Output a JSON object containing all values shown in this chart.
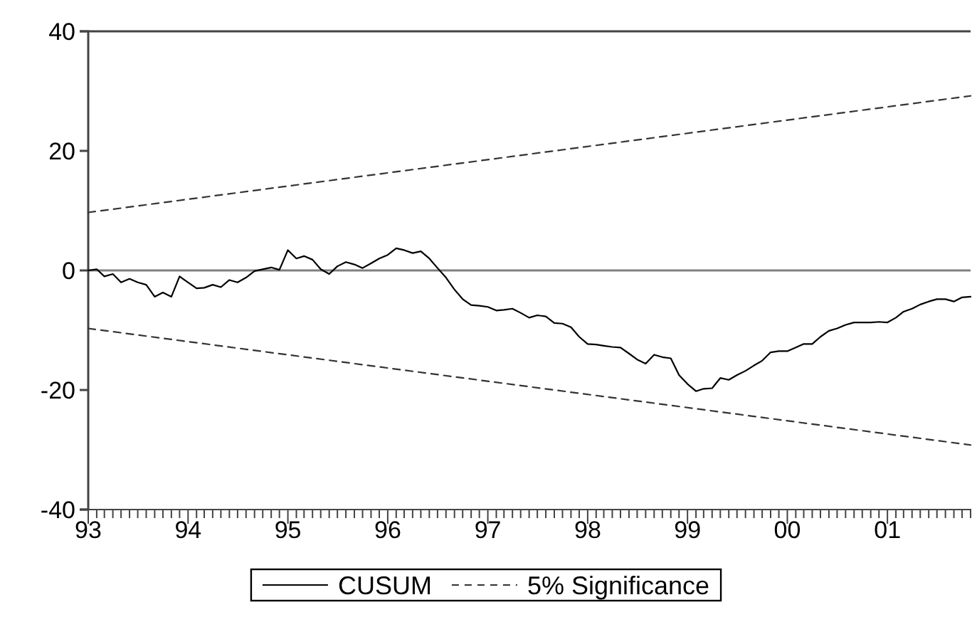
{
  "chart_data": {
    "type": "line",
    "ylim": [
      -40,
      40
    ],
    "yticks": [
      -40,
      -20,
      0,
      20,
      40
    ],
    "xlim": [
      "1993-01",
      "2001-11"
    ],
    "xticks": [
      {
        "value": "1993-01",
        "label": "93"
      },
      {
        "value": "1993-02",
        "label": null
      },
      {
        "value": "1993-03",
        "label": null
      },
      {
        "value": "1993-04",
        "label": null
      },
      {
        "value": "1993-05",
        "label": null
      },
      {
        "value": "1993-06",
        "label": null
      },
      {
        "value": "1993-07",
        "label": null
      },
      {
        "value": "1993-08",
        "label": null
      },
      {
        "value": "1993-09",
        "label": null
      },
      {
        "value": "1993-10",
        "label": null
      },
      {
        "value": "1993-11",
        "label": null
      },
      {
        "value": "1993-12",
        "label": null
      },
      {
        "value": "1994-01",
        "label": "94"
      },
      {
        "value": "1994-02",
        "label": null
      },
      {
        "value": "1994-03",
        "label": null
      },
      {
        "value": "1994-04",
        "label": null
      },
      {
        "value": "1994-05",
        "label": null
      },
      {
        "value": "1994-06",
        "label": null
      },
      {
        "value": "1994-07",
        "label": null
      },
      {
        "value": "1994-08",
        "label": null
      },
      {
        "value": "1994-09",
        "label": null
      },
      {
        "value": "1994-10",
        "label": null
      },
      {
        "value": "1994-11",
        "label": null
      },
      {
        "value": "1994-12",
        "label": null
      },
      {
        "value": "1995-01",
        "label": "95"
      },
      {
        "value": "1995-02",
        "label": null
      },
      {
        "value": "1995-03",
        "label": null
      },
      {
        "value": "1995-04",
        "label": null
      },
      {
        "value": "1995-05",
        "label": null
      },
      {
        "value": "1995-06",
        "label": null
      },
      {
        "value": "1995-07",
        "label": null
      },
      {
        "value": "1995-08",
        "label": null
      },
      {
        "value": "1995-09",
        "label": null
      },
      {
        "value": "1995-10",
        "label": null
      },
      {
        "value": "1995-11",
        "label": null
      },
      {
        "value": "1995-12",
        "label": null
      },
      {
        "value": "1996-01",
        "label": "96"
      },
      {
        "value": "1996-02",
        "label": null
      },
      {
        "value": "1996-03",
        "label": null
      },
      {
        "value": "1996-04",
        "label": null
      },
      {
        "value": "1996-05",
        "label": null
      },
      {
        "value": "1996-06",
        "label": null
      },
      {
        "value": "1996-07",
        "label": null
      },
      {
        "value": "1996-08",
        "label": null
      },
      {
        "value": "1996-09",
        "label": null
      },
      {
        "value": "1996-10",
        "label": null
      },
      {
        "value": "1996-11",
        "label": null
      },
      {
        "value": "1996-12",
        "label": null
      },
      {
        "value": "1997-01",
        "label": "97"
      },
      {
        "value": "1997-02",
        "label": null
      },
      {
        "value": "1997-03",
        "label": null
      },
      {
        "value": "1997-04",
        "label": null
      },
      {
        "value": "1997-05",
        "label": null
      },
      {
        "value": "1997-06",
        "label": null
      },
      {
        "value": "1997-07",
        "label": null
      },
      {
        "value": "1997-08",
        "label": null
      },
      {
        "value": "1997-09",
        "label": null
      },
      {
        "value": "1997-10",
        "label": null
      },
      {
        "value": "1997-11",
        "label": null
      },
      {
        "value": "1997-12",
        "label": null
      },
      {
        "value": "1998-01",
        "label": "98"
      },
      {
        "value": "1998-02",
        "label": null
      },
      {
        "value": "1998-03",
        "label": null
      },
      {
        "value": "1998-04",
        "label": null
      },
      {
        "value": "1998-05",
        "label": null
      },
      {
        "value": "1998-06",
        "label": null
      },
      {
        "value": "1998-07",
        "label": null
      },
      {
        "value": "1998-08",
        "label": null
      },
      {
        "value": "1998-09",
        "label": null
      },
      {
        "value": "1998-10",
        "label": null
      },
      {
        "value": "1998-11",
        "label": null
      },
      {
        "value": "1998-12",
        "label": null
      },
      {
        "value": "1999-01",
        "label": "99"
      },
      {
        "value": "1999-02",
        "label": null
      },
      {
        "value": "1999-03",
        "label": null
      },
      {
        "value": "1999-04",
        "label": null
      },
      {
        "value": "1999-05",
        "label": null
      },
      {
        "value": "1999-06",
        "label": null
      },
      {
        "value": "1999-07",
        "label": null
      },
      {
        "value": "1999-08",
        "label": null
      },
      {
        "value": "1999-09",
        "label": null
      },
      {
        "value": "1999-10",
        "label": null
      },
      {
        "value": "1999-11",
        "label": null
      },
      {
        "value": "1999-12",
        "label": null
      },
      {
        "value": "2000-01",
        "label": "00"
      },
      {
        "value": "2000-02",
        "label": null
      },
      {
        "value": "2000-03",
        "label": null
      },
      {
        "value": "2000-04",
        "label": null
      },
      {
        "value": "2000-05",
        "label": null
      },
      {
        "value": "2000-06",
        "label": null
      },
      {
        "value": "2000-07",
        "label": null
      },
      {
        "value": "2000-08",
        "label": null
      },
      {
        "value": "2000-09",
        "label": null
      },
      {
        "value": "2000-10",
        "label": null
      },
      {
        "value": "2000-11",
        "label": null
      },
      {
        "value": "2000-12",
        "label": null
      },
      {
        "value": "2001-01",
        "label": "01"
      },
      {
        "value": "2001-02",
        "label": null
      },
      {
        "value": "2001-03",
        "label": null
      },
      {
        "value": "2001-04",
        "label": null
      },
      {
        "value": "2001-05",
        "label": null
      },
      {
        "value": "2001-06",
        "label": null
      },
      {
        "value": "2001-07",
        "label": null
      },
      {
        "value": "2001-08",
        "label": null
      },
      {
        "value": "2001-09",
        "label": null
      },
      {
        "value": "2001-10",
        "label": null
      },
      {
        "value": "2001-11",
        "label": null
      }
    ],
    "series": [
      {
        "name": "CUSUM",
        "color": "#000000",
        "line_style": "solid",
        "x": [
          "1993-01",
          "1993-02",
          "1993-03",
          "1993-04",
          "1993-05",
          "1993-06",
          "1993-07",
          "1993-08",
          "1993-09",
          "1993-10",
          "1993-11",
          "1993-12",
          "1994-01",
          "1994-02",
          "1994-03",
          "1994-04",
          "1994-05",
          "1994-06",
          "1994-07",
          "1994-08",
          "1994-09",
          "1994-10",
          "1994-11",
          "1994-12",
          "1995-01",
          "1995-02",
          "1995-03",
          "1995-04",
          "1995-05",
          "1995-06",
          "1995-07",
          "1995-08",
          "1995-09",
          "1995-10",
          "1995-11",
          "1995-12",
          "1996-01",
          "1996-02",
          "1996-03",
          "1996-04",
          "1996-05",
          "1996-06",
          "1996-07",
          "1996-08",
          "1996-09",
          "1996-10",
          "1996-11",
          "1996-12",
          "1997-01",
          "1997-02",
          "1997-03",
          "1997-04",
          "1997-05",
          "1997-06",
          "1997-07",
          "1997-08",
          "1997-09",
          "1997-10",
          "1997-11",
          "1997-12",
          "1998-01",
          "1998-02",
          "1998-03",
          "1998-04",
          "1998-05",
          "1998-06",
          "1998-07",
          "1998-08",
          "1998-09",
          "1998-10",
          "1998-11",
          "1998-12",
          "1999-01",
          "1999-02",
          "1999-03",
          "1999-04",
          "1999-05",
          "1999-06",
          "1999-07",
          "1999-08",
          "1999-09",
          "1999-10",
          "1999-11",
          "1999-12",
          "2000-01",
          "2000-02",
          "2000-03",
          "2000-04",
          "2000-05",
          "2000-06",
          "2000-07",
          "2000-08",
          "2000-09",
          "2000-10",
          "2000-11",
          "2000-12",
          "2001-01",
          "2001-02",
          "2001-03",
          "2001-04",
          "2001-05",
          "2001-06",
          "2001-07",
          "2001-08",
          "2001-09",
          "2001-10",
          "2001-11"
        ],
        "values": [
          0,
          0.2,
          -1.0,
          -0.6,
          -2.0,
          -1.4,
          -2.0,
          -2.4,
          -4.4,
          -3.7,
          -4.4,
          -1.0,
          -2.0,
          -3.0,
          -2.9,
          -2.4,
          -2.8,
          -1.6,
          -2.0,
          -1.2,
          -0.1,
          0.2,
          0.5,
          0.1,
          3.4,
          2.0,
          2.4,
          1.8,
          0.2,
          -0.6,
          0.7,
          1.4,
          1.0,
          0.4,
          1.2,
          2.0,
          2.6,
          3.7,
          3.4,
          2.9,
          3.2,
          2.0,
          0.4,
          -1.2,
          -3.2,
          -4.8,
          -5.8,
          -5.9,
          -6.1,
          -6.7,
          -6.6,
          -6.4,
          -7.1,
          -7.9,
          -7.5,
          -7.7,
          -8.8,
          -8.9,
          -9.5,
          -11.1,
          -12.3,
          -12.4,
          -12.6,
          -12.8,
          -12.9,
          -13.9,
          -14.9,
          -15.6,
          -14.1,
          -14.5,
          -14.7,
          -17.5,
          -19.0,
          -20.2,
          -19.8,
          -19.7,
          -18.0,
          -18.3,
          -17.5,
          -16.8,
          -15.9,
          -15.1,
          -13.7,
          -13.5,
          -13.5,
          -12.9,
          -12.3,
          -12.3,
          -11.1,
          -10.1,
          -9.7,
          -9.1,
          -8.7,
          -8.7,
          -8.7,
          -8.6,
          -8.7,
          -7.9,
          -6.9,
          -6.4,
          -5.7,
          -5.2,
          -4.8,
          -4.8,
          -5.2,
          -4.5,
          -4.4
        ]
      },
      {
        "name": "5% Significance",
        "color": "#333333",
        "line_style": "dashed",
        "x": [
          "1993-01",
          "2001-11"
        ],
        "values": [
          9.7,
          29.2
        ]
      },
      {
        "color": "#333333",
        "line_style": "dashed",
        "x": [
          "1993-01",
          "2001-11"
        ],
        "values": [
          -9.7,
          -29.2
        ]
      }
    ],
    "ref_lines": [
      {
        "axis": "y",
        "value": 0,
        "color": "#808080"
      }
    ],
    "legend": "bottom",
    "grid": false,
    "marker": "none"
  }
}
